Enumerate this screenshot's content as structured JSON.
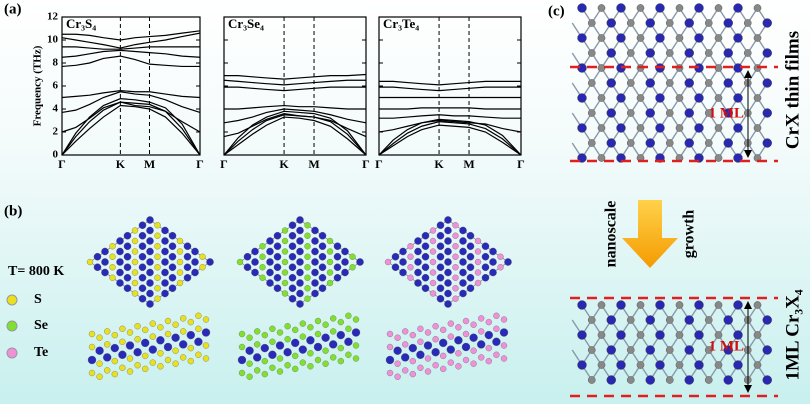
{
  "panel_labels": [
    "(a)",
    "(b)",
    "(c)"
  ],
  "chart_data": [
    {
      "type": "line",
      "title": "Cr₃S₄",
      "y_label": "Frequency (THz)",
      "show_ytick_labels": true,
      "xlim": [
        0,
        1
      ],
      "ylim": [
        0,
        12
      ],
      "yticks": [
        0,
        2,
        4,
        6,
        8,
        10,
        12
      ],
      "xticks": [
        {
          "value": 0,
          "label": "Γ"
        },
        {
          "value": 0.423,
          "label": "K"
        },
        {
          "value": 0.634,
          "label": "M"
        },
        {
          "value": 1,
          "label": "Γ"
        }
      ],
      "x": [
        0,
        0.1,
        0.2,
        0.3,
        0.423,
        0.53,
        0.634,
        0.75,
        0.87,
        1
      ],
      "series": [
        {
          "color": "#000000",
          "values": [
            0,
            1.2,
            2.3,
            3.3,
            4.3,
            4.2,
            4.0,
            3.3,
            1.9,
            0
          ]
        },
        {
          "color": "#000000",
          "values": [
            0,
            1.6,
            2.9,
            3.9,
            4.6,
            4.5,
            4.4,
            3.8,
            2.3,
            0
          ]
        },
        {
          "color": "#000000",
          "values": [
            0,
            1.9,
            3.3,
            4.3,
            4.9,
            4.8,
            4.6,
            4.1,
            2.7,
            0
          ]
        },
        {
          "color": "#000000",
          "values": [
            2.0,
            2.4,
            3.2,
            4.1,
            4.6,
            4.3,
            4.2,
            3.8,
            2.9,
            2.0
          ]
        },
        {
          "color": "#000000",
          "values": [
            3.7,
            3.9,
            4.4,
            5.0,
            5.5,
            5.3,
            5.2,
            4.8,
            4.2,
            3.7
          ]
        },
        {
          "color": "#000000",
          "values": [
            5.0,
            5.1,
            5.2,
            5.4,
            5.6,
            5.5,
            5.5,
            5.3,
            5.1,
            5.0
          ]
        },
        {
          "color": "#000000",
          "values": [
            7.7,
            7.8,
            8.0,
            8.4,
            8.6,
            8.3,
            7.9,
            7.8,
            7.7,
            7.7
          ]
        },
        {
          "color": "#000000",
          "values": [
            8.5,
            8.6,
            8.8,
            9.0,
            9.1,
            9.0,
            8.9,
            8.8,
            8.6,
            8.5
          ]
        },
        {
          "color": "#000000",
          "values": [
            9.4,
            9.4,
            9.3,
            9.2,
            9.2,
            9.3,
            9.4,
            9.4,
            9.4,
            9.4
          ]
        },
        {
          "color": "#000000",
          "values": [
            10.2,
            10.0,
            9.8,
            9.6,
            9.3,
            9.6,
            9.8,
            10.0,
            10.3,
            10.6
          ]
        },
        {
          "color": "#000000",
          "values": [
            10.5,
            10.5,
            10.4,
            10.2,
            10.0,
            10.2,
            10.3,
            10.4,
            10.6,
            10.8
          ]
        }
      ]
    },
    {
      "type": "line",
      "title": "Cr₃Se₄",
      "show_ytick_labels": false,
      "xlim": [
        0,
        1
      ],
      "ylim": [
        0,
        12
      ],
      "yticks": [
        0,
        2,
        4,
        6,
        8,
        10,
        12
      ],
      "xticks": [
        {
          "value": 0,
          "label": "Γ"
        },
        {
          "value": 0.423,
          "label": "K"
        },
        {
          "value": 0.634,
          "label": "M"
        },
        {
          "value": 1,
          "label": "Γ"
        }
      ],
      "x": [
        0,
        0.1,
        0.2,
        0.3,
        0.423,
        0.53,
        0.634,
        0.75,
        0.87,
        1
      ],
      "series": [
        {
          "color": "#000000",
          "values": [
            0,
            0.9,
            1.8,
            2.6,
            3.3,
            3.2,
            3.0,
            2.5,
            1.4,
            0
          ]
        },
        {
          "color": "#000000",
          "values": [
            0,
            1.2,
            2.2,
            3.0,
            3.5,
            3.4,
            3.3,
            2.9,
            1.8,
            0
          ]
        },
        {
          "color": "#000000",
          "values": [
            0,
            1.5,
            2.6,
            3.3,
            3.8,
            3.7,
            3.6,
            3.2,
            2.1,
            0
          ]
        },
        {
          "color": "#000000",
          "values": [
            1.6,
            1.9,
            2.5,
            3.1,
            3.6,
            3.4,
            3.3,
            3.0,
            2.3,
            1.6
          ]
        },
        {
          "color": "#000000",
          "values": [
            2.8,
            3.0,
            3.3,
            3.7,
            4.0,
            3.9,
            3.8,
            3.5,
            3.1,
            2.8
          ]
        },
        {
          "color": "#000000",
          "values": [
            4.0,
            4.0,
            4.1,
            4.2,
            4.3,
            4.2,
            4.2,
            4.1,
            4.0,
            4.0
          ]
        },
        {
          "color": "#000000",
          "values": [
            5.9,
            5.9,
            5.8,
            5.7,
            5.6,
            5.7,
            5.8,
            5.9,
            5.9,
            5.9
          ]
        },
        {
          "color": "#000000",
          "values": [
            6.5,
            6.4,
            6.3,
            6.2,
            6.1,
            6.2,
            6.3,
            6.4,
            6.5,
            6.5
          ]
        },
        {
          "color": "#000000",
          "values": [
            6.9,
            6.9,
            6.8,
            6.7,
            6.6,
            6.7,
            6.8,
            6.9,
            6.9,
            7.0
          ]
        }
      ]
    },
    {
      "type": "line",
      "title": "Cr₃Te₄",
      "show_ytick_labels": false,
      "xlim": [
        0,
        1
      ],
      "ylim": [
        0,
        12
      ],
      "yticks": [
        0,
        2,
        4,
        6,
        8,
        10,
        12
      ],
      "xticks": [
        {
          "value": 0,
          "label": "Γ"
        },
        {
          "value": 0.423,
          "label": "K"
        },
        {
          "value": 0.634,
          "label": "M"
        },
        {
          "value": 1,
          "label": "Γ"
        }
      ],
      "x": [
        0,
        0.1,
        0.2,
        0.3,
        0.423,
        0.53,
        0.634,
        0.75,
        0.87,
        1
      ],
      "series": [
        {
          "color": "#000000",
          "values": [
            0,
            0.8,
            1.6,
            2.2,
            2.6,
            2.5,
            2.4,
            2.0,
            1.1,
            0
          ]
        },
        {
          "color": "#000000",
          "values": [
            0,
            1.0,
            1.9,
            2.5,
            2.9,
            2.8,
            2.7,
            2.3,
            1.4,
            0
          ]
        },
        {
          "color": "#000000",
          "values": [
            0,
            1.3,
            2.2,
            2.8,
            3.1,
            3.0,
            2.9,
            2.6,
            1.7,
            0
          ]
        },
        {
          "color": "#000000",
          "values": [
            2.0,
            2.2,
            2.5,
            2.8,
            3.0,
            2.9,
            2.8,
            2.7,
            2.3,
            2.0
          ]
        },
        {
          "color": "#000000",
          "values": [
            3.2,
            3.2,
            3.3,
            3.4,
            3.5,
            3.4,
            3.4,
            3.3,
            3.2,
            3.2
          ]
        },
        {
          "color": "#000000",
          "values": [
            4.0,
            4.0,
            4.0,
            4.1,
            4.1,
            4.1,
            4.1,
            4.0,
            4.0,
            4.0
          ]
        },
        {
          "color": "#000000",
          "values": [
            5.0,
            5.0,
            5.0,
            5.0,
            5.0,
            5.0,
            5.0,
            5.0,
            5.0,
            5.0
          ]
        },
        {
          "color": "#000000",
          "values": [
            5.9,
            5.9,
            5.8,
            5.7,
            5.6,
            5.7,
            5.8,
            5.9,
            5.9,
            5.9
          ]
        },
        {
          "color": "#000000",
          "values": [
            6.4,
            6.4,
            6.3,
            6.2,
            6.1,
            6.2,
            6.3,
            6.4,
            6.4,
            6.4
          ]
        }
      ]
    }
  ],
  "structures": {
    "temperature": "T= 800 K",
    "legend": [
      "S",
      "Se",
      "Te"
    ]
  },
  "growth": {
    "top_label": "CrX thin films",
    "top_thickness": "1 ML",
    "arrow_left": "nanoscale",
    "arrow_right": "growth",
    "bottom_thickness": "1 ML",
    "bottom_label": "1ML Cr₃X₄"
  }
}
